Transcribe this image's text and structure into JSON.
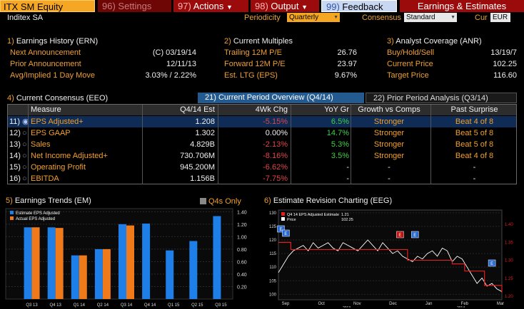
{
  "topbar": {
    "ticker": "ITX SM Equity",
    "buttons": [
      {
        "num": "96)",
        "label": "Settings"
      },
      {
        "num": "97)",
        "label": "Actions"
      },
      {
        "num": "98)",
        "label": "Output"
      },
      {
        "num": "99)",
        "label": "Feedback"
      }
    ],
    "title": "Earnings & Estimates"
  },
  "row2": {
    "company": "Inditex SA",
    "periodicity_label": "Periodicity",
    "periodicity_value": "Quarterly",
    "consensus_label": "Consensus",
    "consensus_value": "Standard",
    "cur_label": "Cur",
    "cur_value": "EUR"
  },
  "earnings_history": {
    "title_num": "1)",
    "title": "Earnings History (ERN)",
    "rows": [
      {
        "label": "Next Announcement",
        "value": "(C)  03/19/14"
      },
      {
        "label": "Prior Announcement",
        "value": "12/11/13"
      },
      {
        "label": "Avg/Implied 1 Day Move",
        "value": "3.03% / 2.22%"
      }
    ]
  },
  "current_multiples": {
    "title_num": "2)",
    "title": "Current Multiples",
    "rows": [
      {
        "label": "Trailing 12M P/E",
        "value": "26.76"
      },
      {
        "label": "Forward 12M P/E",
        "value": "23.97"
      },
      {
        "label": "Est. LTG (EPS)",
        "value": "9.67%"
      }
    ]
  },
  "analyst_coverage": {
    "title_num": "3)",
    "title": "Analyst Coverage (ANR)",
    "rows": [
      {
        "label": "Buy/Hold/Sell",
        "value": "13/19/7"
      },
      {
        "label": "Current Price",
        "value": "102.25"
      },
      {
        "label": "Target Price",
        "value": "116.60"
      }
    ]
  },
  "consensus": {
    "title_num": "4)",
    "title": "Current Consensus (EEO)",
    "tabs": [
      {
        "num": "21)",
        "label": "Current Period Overview (Q4/14)"
      },
      {
        "num": "22)",
        "label": "Prior Period Analysis (Q3/14)"
      }
    ],
    "headers": [
      "Measure",
      "Q4/14 Est",
      "4Wk Chg",
      "YoY Gr",
      "Growth vs Comps",
      "Past Surprise"
    ],
    "rows": [
      {
        "num": "11)",
        "measure": "EPS Adjusted+",
        "est": "1.208",
        "chg": "-5.15%",
        "yoy": "6.5%",
        "vs": "Stronger",
        "ps": "Beat 4 of 8"
      },
      {
        "num": "12)",
        "measure": "EPS GAAP",
        "est": "1.302",
        "chg": "0.00%",
        "yoy": "14.7%",
        "vs": "Stronger",
        "ps": "Beat 5 of 8"
      },
      {
        "num": "13)",
        "measure": "Sales",
        "est": "4.829B",
        "chg": "-2.13%",
        "yoy": "5.3%",
        "vs": "Stronger",
        "ps": "Beat 5 of 8"
      },
      {
        "num": "14)",
        "measure": "Net Income Adjusted+",
        "est": "730.706M",
        "chg": "-8.16%",
        "yoy": "3.5%",
        "vs": "Stronger",
        "ps": "Beat 4 of 8"
      },
      {
        "num": "15)",
        "measure": "Operating Profit",
        "est": "945.200M",
        "chg": "-6.62%",
        "yoy": "-",
        "vs": "-",
        "ps": "-"
      },
      {
        "num": "16)",
        "measure": "EBITDA",
        "est": "1.156B",
        "chg": "-7.75%",
        "yoy": "-",
        "vs": "-",
        "ps": "-"
      }
    ]
  },
  "earnings_trends": {
    "title_num": "5)",
    "title": "Earnings Trends (EM)",
    "q4_only": "Q4s Only",
    "colors": {
      "estimate": "#1e7fe8",
      "actual": "#f07a1a"
    }
  },
  "revision_chart": {
    "title_num": "6)",
    "title": "Estimate Revision Charting (EEG)",
    "legend": [
      {
        "label": "Q4 14 EPS Adjusted Estimate",
        "value": "1.21"
      },
      {
        "label": "Price",
        "value": "102.25"
      }
    ],
    "colors": {
      "estimate": "#e02020",
      "price": "#ffffff"
    }
  },
  "chart_data": [
    {
      "type": "bar",
      "title": "Earnings Trends (EM)",
      "categories": [
        "Q3 13",
        "Q4 13",
        "Q1 14",
        "Q2 14",
        "Q3 14",
        "Q4 14",
        "Q1 15",
        "Q2 15",
        "Q3 15"
      ],
      "series": [
        {
          "name": "Estimate EPS Adjusted",
          "values": [
            1.15,
            1.15,
            0.7,
            0.8,
            1.2,
            1.21,
            0.78,
            0.93,
            1.33
          ]
        },
        {
          "name": "Actual EPS Adjusted",
          "values": [
            1.15,
            1.14,
            0.7,
            0.8,
            1.18,
            null,
            null,
            null,
            null
          ]
        }
      ],
      "yticks": [
        "0.20",
        "0.40",
        "0.60",
        "0.80",
        "1.00",
        "1.20",
        "1.40"
      ],
      "ylim": [
        0,
        1.45
      ],
      "legend_position": "top-left"
    },
    {
      "type": "line",
      "title": "Estimate Revision Charting (EEG)",
      "x_labels": [
        "Sep",
        "Oct",
        "Nov",
        "Dec",
        "Jan",
        "Feb",
        "Mar"
      ],
      "year_labels": [
        "2013",
        "2014"
      ],
      "left_yticks": [
        "100",
        "105",
        "110",
        "115",
        "120",
        "125",
        "130"
      ],
      "right_yticks": [
        "1.15",
        "1.20",
        "1.25",
        "1.30",
        "1.35",
        "1.40"
      ],
      "series": [
        {
          "name": "Price",
          "axis": "left",
          "x": [
            0,
            4,
            8,
            12,
            16,
            20,
            24,
            28,
            32,
            36,
            40,
            44,
            48,
            52,
            56,
            60,
            64,
            68,
            72,
            76,
            80,
            84,
            88,
            92,
            96,
            100,
            104,
            108,
            112,
            116,
            120,
            124,
            128,
            132,
            136,
            140,
            144,
            148,
            152,
            156,
            160,
            164,
            168,
            172,
            176,
            180
          ],
          "y": [
            108,
            111,
            114,
            116,
            117,
            118,
            116,
            119,
            117,
            118,
            119,
            117,
            116,
            119,
            118,
            117,
            116,
            118,
            120,
            118,
            116,
            119,
            117,
            115,
            116,
            114,
            113,
            112,
            114,
            113,
            115,
            116,
            114,
            117,
            116,
            112,
            114,
            113,
            110,
            107,
            104,
            106,
            103,
            104,
            102,
            101
          ]
        },
        {
          "name": "Q4 14 EPS Adjusted Estimate",
          "axis": "right",
          "x": [
            0,
            10,
            20,
            60,
            100,
            104,
            120,
            140,
            150,
            160,
            166,
            180
          ],
          "y": [
            1.35,
            1.33,
            1.33,
            1.33,
            1.33,
            1.3,
            1.3,
            1.29,
            1.27,
            1.27,
            1.23,
            1.21
          ]
        }
      ],
      "markers": [
        {
          "x": 2,
          "label": "E"
        },
        {
          "x": 6,
          "label": "E"
        },
        {
          "x": 98,
          "label": "E"
        },
        {
          "x": 110,
          "label": "E"
        },
        {
          "x": 172,
          "label": "E"
        }
      ]
    }
  ]
}
